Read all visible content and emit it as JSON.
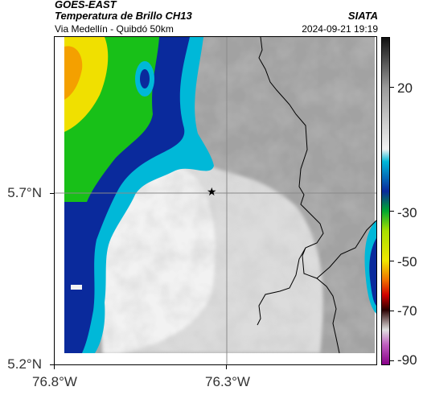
{
  "header": {
    "satellite": "GOES-EAST",
    "product": "Temperatura de Brillo CH13",
    "region": "Via Medellín - Quibdó 50km",
    "brand": "SIATA",
    "timestamp": "2024-09-21 19:19"
  },
  "axes": {
    "lat_labels": [
      "5.7°N",
      "5.2°N"
    ],
    "lon_labels": [
      "76.8°W",
      "76.3°W"
    ]
  },
  "marker": {
    "icon": "star-icon",
    "symbol": "★"
  },
  "colorbar": {
    "labels": [
      "20",
      "-30",
      "-50",
      "-70",
      "-90"
    ],
    "stops": [
      {
        "value": 40,
        "color": "#111111"
      },
      {
        "value": 20,
        "color": "#9a9a9a"
      },
      {
        "value": -5,
        "color": "#f2f2f2"
      },
      {
        "value": -10,
        "color": "#00b8d8"
      },
      {
        "value": -22,
        "color": "#0a2a9c"
      },
      {
        "value": -30,
        "color": "#00a830"
      },
      {
        "value": -38,
        "color": "#a8e000"
      },
      {
        "value": -50,
        "color": "#f0e800"
      },
      {
        "value": -58,
        "color": "#f07000"
      },
      {
        "value": -64,
        "color": "#d00000"
      },
      {
        "value": -70,
        "color": "#2a0000"
      },
      {
        "value": -78,
        "color": "#e0e0e0"
      },
      {
        "value": -84,
        "color": "#c060c0"
      },
      {
        "value": -92,
        "color": "#880088"
      }
    ]
  },
  "colors": {
    "cloud_warm": "#9e9e9e",
    "cloud_cold": "#f4f4f4",
    "cyan": "#00b8d8",
    "deep_blue": "#0a2a9c",
    "green": "#18c018",
    "yellow": "#f0e000",
    "orange": "#f4a000",
    "border_line": "#000000",
    "grid": "#888888"
  }
}
